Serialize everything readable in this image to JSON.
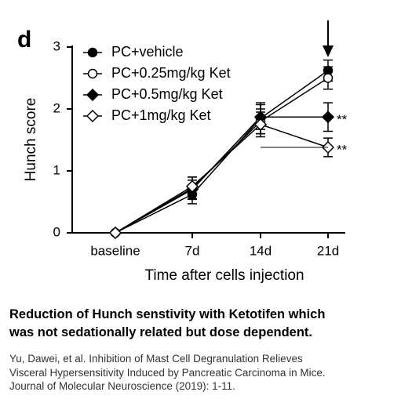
{
  "chart_data": {
    "type": "line",
    "panel_label": "d",
    "ylabel": "Hunch score",
    "xlabel": "Time after cells injection",
    "categories": [
      "baseline",
      "7d",
      "14d",
      "21d"
    ],
    "ylim": [
      0,
      3
    ],
    "yticks": [
      0,
      1,
      2,
      3
    ],
    "series": [
      {
        "name": "PC+vehicle",
        "color": "#000000",
        "marker": "circle",
        "filled": true,
        "values": [
          0,
          0.62,
          1.85,
          2.62
        ],
        "errors": [
          0,
          0.15,
          0.25,
          0.17
        ]
      },
      {
        "name": "PC+0.25mg/kg Ket",
        "color": "#000000",
        "marker": "circle",
        "filled": false,
        "values": [
          0,
          0.72,
          1.8,
          2.5
        ],
        "errors": [
          0,
          0.18,
          0.2,
          0.18
        ]
      },
      {
        "name": "PC+0.5mg/kg Ket",
        "color": "#000000",
        "marker": "diamond",
        "filled": true,
        "values": [
          0,
          0.7,
          1.87,
          1.87
        ],
        "errors": [
          0,
          0.15,
          0.2,
          0.23
        ]
      },
      {
        "name": "PC+1mg/kg Ket",
        "color": "#000000",
        "marker": "diamond",
        "filled": false,
        "values": [
          0,
          0.75,
          1.75,
          1.38
        ],
        "errors": [
          0,
          0.15,
          0.2,
          0.15
        ]
      }
    ],
    "annotations": [
      {
        "text": "**"
      },
      {
        "text": "**"
      }
    ]
  },
  "caption": [
    "Reduction of Hunch senstivity with Ketotifen which",
    "was not sedationally related but dose dependent."
  ],
  "citation": [
    "Yu, Dawei, et al. Inhibition of Mast Cell Degranulation Relieves",
    "Visceral Hypersensitivity Induced by Pancreatic Carcinoma in Mice.",
    "Journal of Molecular Neuroscience (2019): 1-11."
  ]
}
